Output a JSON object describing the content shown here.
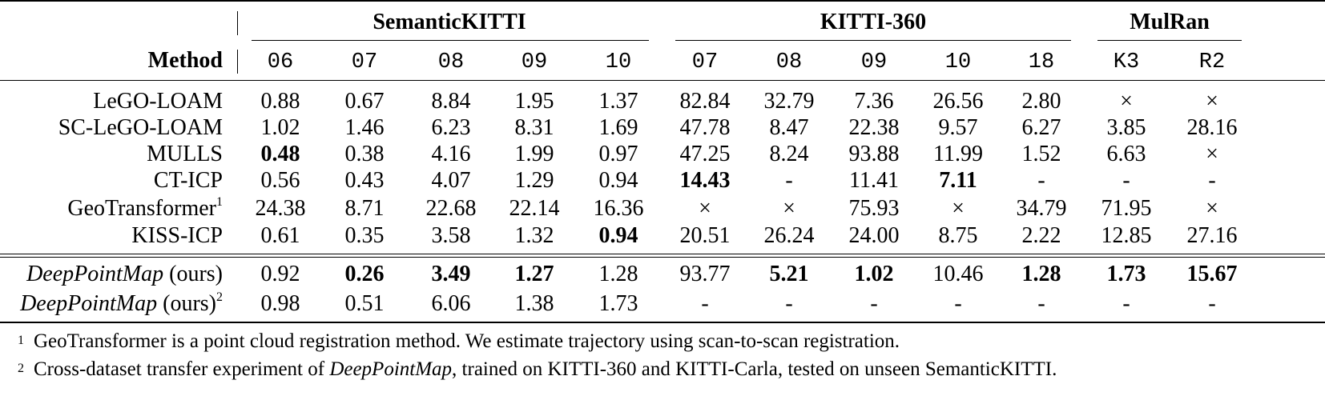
{
  "table": {
    "method_header": "Method",
    "groups": [
      {
        "name": "SemanticKITTI"
      },
      {
        "name": "KITTI-360"
      },
      {
        "name": "MulRan"
      }
    ],
    "sequences": [
      "06",
      "07",
      "08",
      "09",
      "10",
      "07",
      "08",
      "09",
      "10",
      "18",
      "K3",
      "R2"
    ],
    "rows": [
      {
        "method": "LeGO-LOAM",
        "italic": false,
        "sup": "",
        "suffix": "",
        "values": [
          "0.88",
          "0.67",
          "8.84",
          "1.95",
          "1.37",
          "82.84",
          "32.79",
          "7.36",
          "26.56",
          "2.80",
          "×",
          "×"
        ],
        "bold": []
      },
      {
        "method": "SC-LeGO-LOAM",
        "italic": false,
        "sup": "",
        "suffix": "",
        "values": [
          "1.02",
          "1.46",
          "6.23",
          "8.31",
          "1.69",
          "47.78",
          "8.47",
          "22.38",
          "9.57",
          "6.27",
          "3.85",
          "28.16"
        ],
        "bold": []
      },
      {
        "method": "MULLS",
        "italic": false,
        "sup": "",
        "suffix": "",
        "values": [
          "0.48",
          "0.38",
          "4.16",
          "1.99",
          "0.97",
          "47.25",
          "8.24",
          "93.88",
          "11.99",
          "1.52",
          "6.63",
          "×"
        ],
        "bold": [
          0
        ]
      },
      {
        "method": "CT-ICP",
        "italic": false,
        "sup": "",
        "suffix": "",
        "values": [
          "0.56",
          "0.43",
          "4.07",
          "1.29",
          "0.94",
          "14.43",
          "-",
          "11.41",
          "7.11",
          "-",
          "-",
          "-"
        ],
        "bold": [
          5,
          8
        ]
      },
      {
        "method": "GeoTransformer",
        "italic": false,
        "sup": "1",
        "suffix": "",
        "values": [
          "24.38",
          "8.71",
          "22.68",
          "22.14",
          "16.36",
          "×",
          "×",
          "75.93",
          "×",
          "34.79",
          "71.95",
          "×"
        ],
        "bold": []
      },
      {
        "method": "KISS-ICP",
        "italic": false,
        "sup": "",
        "suffix": "",
        "values": [
          "0.61",
          "0.35",
          "3.58",
          "1.32",
          "0.94",
          "20.51",
          "26.24",
          "24.00",
          "8.75",
          "2.22",
          "12.85",
          "27.16"
        ],
        "bold": [
          4
        ]
      },
      {
        "method": "DeepPointMap",
        "italic": true,
        "sup": "",
        "suffix": " (ours)",
        "values": [
          "0.92",
          "0.26",
          "3.49",
          "1.27",
          "1.28",
          "93.77",
          "5.21",
          "1.02",
          "10.46",
          "1.28",
          "1.73",
          "15.67"
        ],
        "bold": [
          1,
          2,
          3,
          6,
          7,
          9,
          10,
          11
        ]
      },
      {
        "method": "DeepPointMap",
        "italic": true,
        "sup": "2",
        "suffix": " (ours)",
        "values": [
          "0.98",
          "0.51",
          "6.06",
          "1.38",
          "1.73",
          "-",
          "-",
          "-",
          "-",
          "-",
          "-",
          "-"
        ],
        "bold": []
      }
    ]
  },
  "footnotes": [
    {
      "mark": "1",
      "parts": [
        {
          "text": "GeoTransformer is a point cloud registration method. We estimate trajectory using scan-to-scan registration.",
          "italic": false
        }
      ]
    },
    {
      "mark": "2",
      "parts": [
        {
          "text": "Cross-dataset transfer experiment of ",
          "italic": false
        },
        {
          "text": "DeepPointMap",
          "italic": true
        },
        {
          "text": ", trained on KITTI-360 and KITTI-Carla, tested on unseen SemanticKITTI.",
          "italic": false
        }
      ]
    }
  ]
}
